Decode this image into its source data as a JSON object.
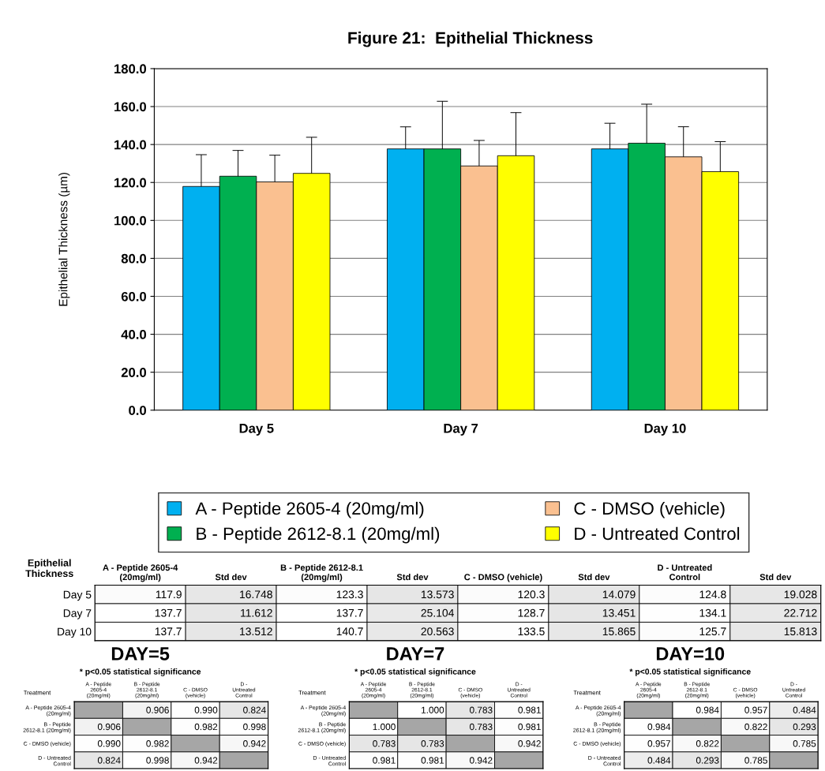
{
  "chart_data": [
    {
      "type": "bar",
      "title": "Figure 21:  Epithelial Thickness",
      "ylabel": "Epithelial Thickness (µm)",
      "categories": [
        "Day 5",
        "Day 7",
        "Day 10"
      ],
      "series": [
        {
          "name": "A - Peptide 2605-4 (20mg/ml)",
          "color": "#00b0f0",
          "values": [
            117.9,
            137.7,
            137.7
          ],
          "errors": [
            16.748,
            11.612,
            13.512
          ]
        },
        {
          "name": "B - Peptide 2612-8.1 (20mg/ml)",
          "color": "#00b050",
          "values": [
            123.3,
            137.7,
            140.7
          ],
          "errors": [
            13.573,
            25.104,
            20.563
          ]
        },
        {
          "name": "C - DMSO (vehicle)",
          "color": "#fac090",
          "values": [
            120.3,
            128.7,
            133.5
          ],
          "errors": [
            14.079,
            13.451,
            15.865
          ]
        },
        {
          "name": "D - Untreated Control",
          "color": "#ffff00",
          "values": [
            124.8,
            134.1,
            125.7
          ],
          "errors": [
            19.028,
            22.712,
            15.813
          ]
        }
      ],
      "ylim": [
        0,
        180
      ],
      "yticks": [
        {
          "value": 0,
          "label": "0.0"
        },
        {
          "value": 20,
          "label": "20.0"
        },
        {
          "value": 40,
          "label": "40.0"
        },
        {
          "value": 60,
          "label": "60.0"
        },
        {
          "value": 80,
          "label": "80.0"
        },
        {
          "value": 100,
          "label": "100.0"
        },
        {
          "value": 120,
          "label": "120.0"
        },
        {
          "value": 140,
          "label": "140.0"
        },
        {
          "value": 160,
          "label": "160.0"
        },
        {
          "value": 180,
          "label": "180.0"
        }
      ],
      "grid": "y",
      "legend": "bottom"
    },
    {
      "type": "heatmap",
      "categories": [
        "A - Peptide 2605-4 (20mg/ml)",
        "Std dev",
        "B - Peptide 2612-8.1 (20mg/ml)",
        "Std dev",
        "C - DMSO (vehicle)",
        "Std dev",
        "D - Untreated Control",
        "Std dev"
      ],
      "y_categories": [
        "Day 5",
        "Day 7",
        "Day 10"
      ],
      "cells": [
        [
          117.9,
          16.748,
          123.3,
          13.573,
          120.3,
          14.079,
          124.8,
          19.028
        ],
        [
          137.7,
          11.612,
          137.7,
          25.104,
          128.7,
          13.451,
          134.1,
          22.712
        ],
        [
          137.7,
          13.512,
          140.7,
          20.563,
          133.5,
          15.865,
          125.7,
          15.813
        ]
      ],
      "cell_labels": [
        [
          "117.9",
          "16.748",
          "123.3",
          "13.573",
          "120.3",
          "14.079",
          "124.8",
          "19.028"
        ],
        [
          "137.7",
          "11.612",
          "137.7",
          "25.104",
          "128.7",
          "13.451",
          "134.1",
          "22.712"
        ],
        [
          "137.7",
          "13.512",
          "140.7",
          "20.563",
          "133.5",
          "15.865",
          "125.7",
          "15.813"
        ]
      ],
      "annotations": [
        "Epithelial Thickness"
      ]
    },
    {
      "type": "heatmap",
      "title": "DAY=5",
      "subtitle": "* p<0.05 statistical significance",
      "categories": [
        "A - Peptide 2605-4 (20mg/ml)",
        "B - Peptide 2612-8.1 (20mg/ml)",
        "C - DMSO (vehicle)",
        "D - Untreated Control"
      ],
      "y_categories": [
        "A - Peptide 2605-4 (20mg/ml)",
        "B - Peptide 2612-8.1 (20mg/ml)",
        "C - DMSO (vehicle)",
        "D - Untreated Control"
      ],
      "cells": [
        [
          null,
          0.906,
          0.99,
          0.824
        ],
        [
          0.906,
          null,
          0.982,
          0.998
        ],
        [
          0.99,
          0.982,
          null,
          0.942
        ],
        [
          0.824,
          0.998,
          0.942,
          null
        ]
      ],
      "cell_labels": [
        [
          null,
          "0.906",
          "0.990",
          "0.824"
        ],
        [
          "0.906",
          null,
          "0.982",
          "0.998"
        ],
        [
          "0.990",
          "0.982",
          null,
          "0.942"
        ],
        [
          "0.824",
          "0.998",
          "0.942",
          null
        ]
      ],
      "annotations": [
        "Treatment"
      ]
    },
    {
      "type": "heatmap",
      "title": "DAY=7",
      "subtitle": "* p<0.05 statistical significance",
      "categories": [
        "A - Peptide 2605-4 (20mg/ml)",
        "B - Peptide 2612-8.1 (20mg/ml)",
        "C - DMSO (vehicle)",
        "D - Untreated Control"
      ],
      "y_categories": [
        "A - Peptide 2605-4 (20mg/ml)",
        "B - Peptide 2612-8.1 (20mg/ml)",
        "C - DMSO (vehicle)",
        "D - Untreated Control"
      ],
      "cells": [
        [
          null,
          1.0,
          0.783,
          0.981
        ],
        [
          1.0,
          null,
          0.783,
          0.981
        ],
        [
          0.783,
          0.783,
          null,
          0.942
        ],
        [
          0.981,
          0.981,
          0.942,
          null
        ]
      ],
      "cell_labels": [
        [
          null,
          "1.000",
          "0.783",
          "0.981"
        ],
        [
          "1.000",
          null,
          "0.783",
          "0.981"
        ],
        [
          "0.783",
          "0.783",
          null,
          "0.942"
        ],
        [
          "0.981",
          "0.981",
          "0.942",
          null
        ]
      ],
      "annotations": [
        "Treatment"
      ]
    },
    {
      "type": "heatmap",
      "title": "DAY=10",
      "subtitle": "* p<0.05 statistical significance",
      "categories": [
        "A - Peptide 2605-4 (20mg/ml)",
        "B - Peptide 2612-8.1 (20mg/ml)",
        "C - DMSO (vehicle)",
        "D - Untreated Control"
      ],
      "y_categories": [
        "A - Peptide 2605-4 (20mg/ml)",
        "B - Peptide 2612-8.1 (20mg/ml)",
        "C - DMSO (vehicle)",
        "D - Untreated Control"
      ],
      "cells": [
        [
          null,
          0.984,
          0.957,
          0.484
        ],
        [
          0.984,
          null,
          0.822,
          0.293
        ],
        [
          0.957,
          0.822,
          null,
          0.785
        ],
        [
          0.484,
          0.293,
          0.785,
          null
        ]
      ],
      "cell_labels": [
        [
          null,
          "0.984",
          "0.957",
          "0.484"
        ],
        [
          "0.984",
          null,
          "0.822",
          "0.293"
        ],
        [
          "0.957",
          "0.822",
          null,
          "0.785"
        ],
        [
          "0.484",
          "0.293",
          "0.785",
          null
        ]
      ],
      "annotations": [
        "Treatment"
      ]
    }
  ]
}
